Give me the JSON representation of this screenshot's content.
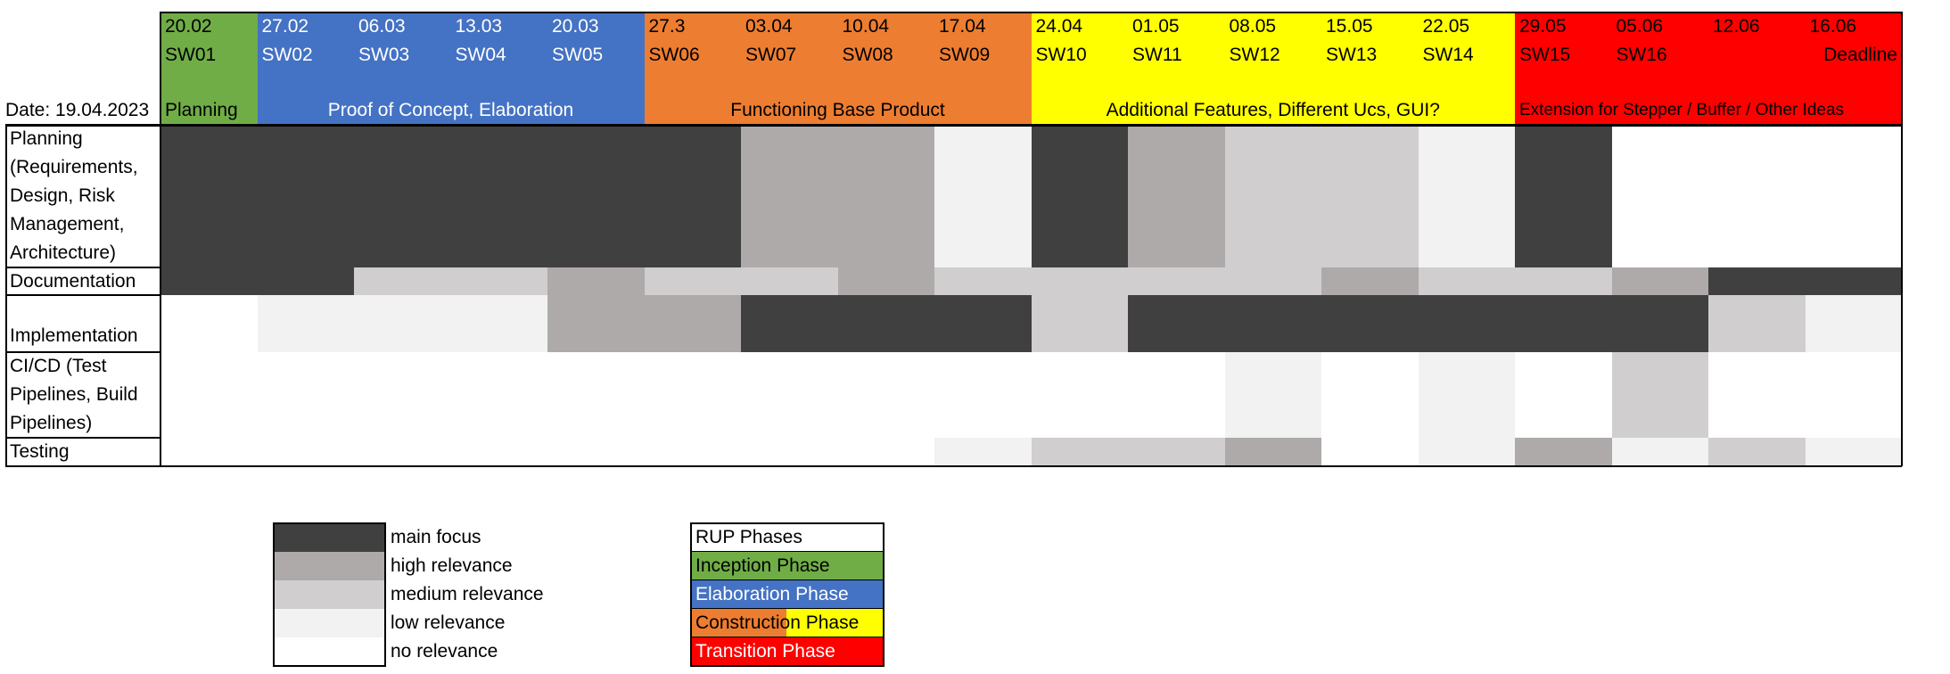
{
  "date_label": "Date: 19.04.2023",
  "chart_data": {
    "type": "heatmap",
    "weeks": [
      {
        "date": "20.02",
        "label": "SW01",
        "phase": "inception"
      },
      {
        "date": "27.02",
        "label": "SW02",
        "phase": "elaboration"
      },
      {
        "date": "06.03",
        "label": "SW03",
        "phase": "elaboration"
      },
      {
        "date": "13.03",
        "label": "SW04",
        "phase": "elaboration"
      },
      {
        "date": "20.03",
        "label": "SW05",
        "phase": "elaboration"
      },
      {
        "date": "27.3",
        "label": "SW06",
        "phase": "construction"
      },
      {
        "date": "03.04",
        "label": "SW07",
        "phase": "construction"
      },
      {
        "date": "10.04",
        "label": "SW08",
        "phase": "construction"
      },
      {
        "date": "17.04",
        "label": "SW09",
        "phase": "construction"
      },
      {
        "date": "24.04",
        "label": "SW10",
        "phase": "construction2"
      },
      {
        "date": "01.05",
        "label": "SW11",
        "phase": "construction2"
      },
      {
        "date": "08.05",
        "label": "SW12",
        "phase": "construction2"
      },
      {
        "date": "15.05",
        "label": "SW13",
        "phase": "construction2"
      },
      {
        "date": "22.05",
        "label": "SW14",
        "phase": "construction2"
      },
      {
        "date": "29.05",
        "label": "SW15",
        "phase": "transition"
      },
      {
        "date": "05.06",
        "label": "SW16",
        "phase": "transition"
      },
      {
        "date": "12.06",
        "label": "",
        "phase": "transition"
      },
      {
        "date": "16.06",
        "label": "Deadline",
        "phase": "transition"
      }
    ],
    "phase_banners": [
      {
        "text": "Planning",
        "start": 0,
        "end": 0,
        "phase": "inception",
        "align": "left"
      },
      {
        "text": "Proof of Concept, Elaboration",
        "start": 1,
        "end": 4,
        "phase": "elaboration",
        "align": "center"
      },
      {
        "text": "Functioning Base Product",
        "start": 5,
        "end": 8,
        "phase": "construction",
        "align": "center"
      },
      {
        "text": "Additional Features, Different Ucs, GUI?",
        "start": 9,
        "end": 13,
        "phase": "construction2",
        "align": "center"
      },
      {
        "text": "Extension for Stepper / Buffer / Other Ideas",
        "start": 14,
        "end": 17,
        "phase": "transition",
        "align": "left"
      }
    ],
    "tasks": [
      {
        "name": "Planning (Requirements, Design, Risk Management, Architecture)",
        "levels": [
          4,
          4,
          4,
          4,
          4,
          4,
          3,
          3,
          1,
          4,
          3,
          2,
          2,
          1,
          4,
          0,
          0,
          0
        ]
      },
      {
        "name": "Documentation",
        "levels": [
          4,
          4,
          2,
          2,
          3,
          2,
          2,
          3,
          2,
          2,
          2,
          2,
          3,
          2,
          2,
          3,
          4,
          4
        ]
      },
      {
        "name": "Implementation",
        "levels": [
          0,
          1,
          1,
          1,
          3,
          3,
          4,
          4,
          4,
          2,
          4,
          4,
          4,
          4,
          4,
          4,
          2,
          1
        ]
      },
      {
        "name": "CI/CD (Test Pipelines, Build Pipelines)",
        "levels": [
          0,
          0,
          0,
          0,
          0,
          0,
          0,
          0,
          0,
          0,
          0,
          1,
          0,
          1,
          0,
          2,
          0,
          0
        ]
      },
      {
        "name": "Testing",
        "levels": [
          0,
          0,
          0,
          0,
          0,
          0,
          0,
          0,
          1,
          2,
          2,
          3,
          0,
          1,
          3,
          1,
          2,
          1
        ]
      }
    ],
    "relevance_legend": [
      {
        "level": 4,
        "label": "main focus"
      },
      {
        "level": 3,
        "label": "high relevance"
      },
      {
        "level": 2,
        "label": "medium relevance"
      },
      {
        "level": 1,
        "label": "low relevance"
      },
      {
        "level": 0,
        "label": "no relevance"
      }
    ],
    "phase_legend": {
      "title": "RUP Phases",
      "items": [
        {
          "phase": "inception",
          "label": "Inception Phase",
          "text_color": "#000000"
        },
        {
          "phase": "elaboration",
          "label": "Elaboration Phase",
          "text_color": "#ffffff"
        },
        {
          "phase": "construction",
          "label": "Construction Phase",
          "text_color": "#000000",
          "split": true
        },
        {
          "phase": "transition",
          "label": "Transition Phase",
          "text_color": "#ffffff"
        }
      ]
    }
  },
  "colors": {
    "level_0": "#ffffff",
    "level_1": "#f2f2f2",
    "level_2": "#d0cece",
    "level_3": "#aeaaaa",
    "level_4": "#404040",
    "inception": "#70ad47",
    "elaboration": "#4472c4",
    "construction": "#ed7d31",
    "construction2": "#ffff00",
    "transition": "#ff0000"
  }
}
